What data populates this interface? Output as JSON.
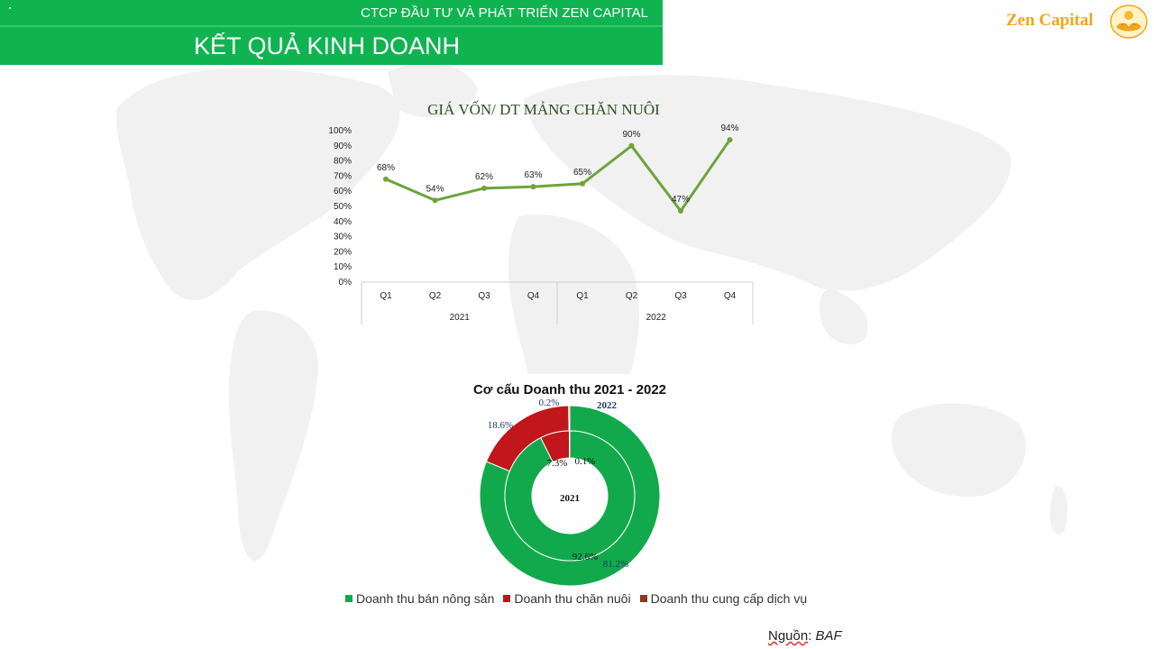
{
  "header": {
    "company": "CTCP ĐẦU TƯ VÀ PHÁT TRIỂN ZEN CAPITAL",
    "title": "KẾT QUẢ KINH DOANH",
    "corner_mark": "."
  },
  "brand": {
    "name": "Zen Capital",
    "logo_icon": "golden-lotus-logo-icon"
  },
  "colors": {
    "header_green": "#0fb451",
    "line": "#6ea33c",
    "nong_san": "#12a94d",
    "chan_nuoi": "#c0161c",
    "dich_vu": "#8b3a1e",
    "brand_gold": "#f2a51a"
  },
  "chart_data": [
    {
      "type": "line",
      "title": "GIÁ VỐN/ DT MẢNG CHĂN NUÔI",
      "categories": [
        "Q1",
        "Q2",
        "Q3",
        "Q4",
        "Q1",
        "Q2",
        "Q3",
        "Q4"
      ],
      "groups": [
        {
          "label": "2021",
          "quarters": 4
        },
        {
          "label": "2022",
          "quarters": 4
        }
      ],
      "series": [
        {
          "values": [
            68,
            54,
            62,
            63,
            65,
            90,
            47,
            94
          ]
        }
      ],
      "data_labels": [
        "68%",
        "54%",
        "62%",
        "63%",
        "65%",
        "90%",
        "47%",
        "94%"
      ],
      "yticks": [
        "0%",
        "10%",
        "20%",
        "30%",
        "40%",
        "50%",
        "60%",
        "70%",
        "80%",
        "90%",
        "100%"
      ],
      "ylim": [
        0,
        100
      ],
      "grid": false
    },
    {
      "type": "pie",
      "subtype": "doughnut",
      "title": "Cơ cấu Doanh thu 2021 - 2022",
      "legend_position": "bottom",
      "categories": [
        "Doanh thu bán nông sản",
        "Doanh thu chăn nuôi",
        "Doanh thu cung cấp dịch vụ"
      ],
      "series": [
        {
          "name": "2022",
          "values": [
            81.2,
            18.6,
            0.2
          ],
          "labels": [
            "81.2%",
            "18.6%",
            "0.2%"
          ]
        },
        {
          "name": "2021",
          "values": [
            92.6,
            7.3,
            0.1
          ],
          "labels": [
            "92.6%",
            "7.3%",
            "0.1%"
          ]
        }
      ]
    }
  ],
  "source": {
    "label": "Nguồn",
    "value": "BAF"
  }
}
